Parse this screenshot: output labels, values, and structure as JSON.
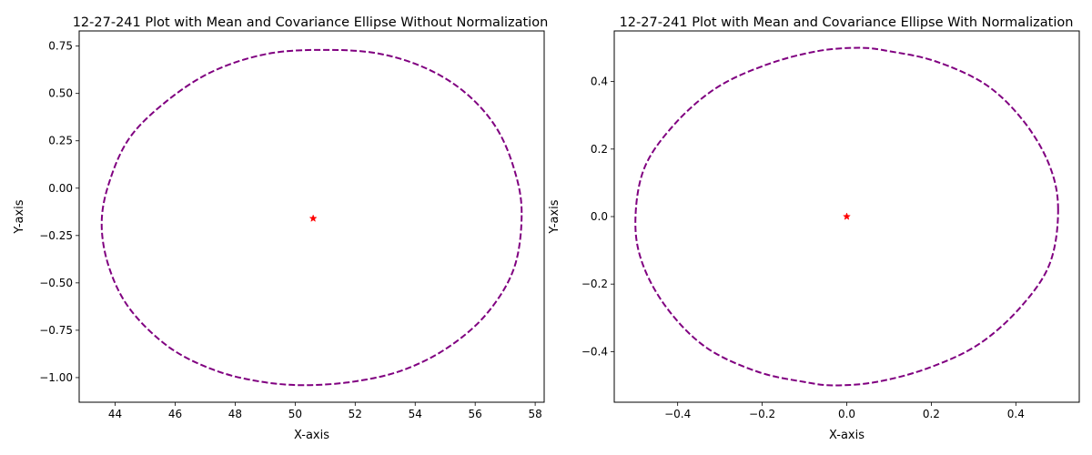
{
  "chart_data": [
    {
      "type": "scatter",
      "title": "12-27-241 Plot with Mean and Covariance Ellipse Without Normalization",
      "xlabel": "X-axis",
      "ylabel": "Y-axis",
      "xlim": [
        42.8,
        58.3
      ],
      "ylim": [
        -1.13,
        0.83
      ],
      "xticks": [
        44,
        46,
        48,
        50,
        52,
        54,
        56,
        58
      ],
      "xtick_labels": [
        "44",
        "46",
        "48",
        "50",
        "52",
        "54",
        "56",
        "58"
      ],
      "yticks": [
        -1.0,
        -0.75,
        -0.5,
        -0.25,
        0.0,
        0.25,
        0.5,
        0.75
      ],
      "ytick_labels": [
        "−1.00",
        "−0.75",
        "−0.50",
        "−0.25",
        "0.00",
        "0.25",
        "0.50",
        "0.75"
      ],
      "grid": false,
      "mean": {
        "x": 50.6,
        "y": -0.16,
        "color": "#ff0000",
        "marker": "star"
      },
      "ellipse": {
        "color": "#800080",
        "linestyle": "dashed",
        "points": [
          [
            57.55,
            -0.13
          ],
          [
            57.3,
            0.1
          ],
          [
            56.7,
            0.32
          ],
          [
            55.7,
            0.5
          ],
          [
            54.4,
            0.63
          ],
          [
            52.8,
            0.71
          ],
          [
            51.0,
            0.73
          ],
          [
            49.1,
            0.71
          ],
          [
            47.3,
            0.62
          ],
          [
            45.8,
            0.47
          ],
          [
            44.5,
            0.27
          ],
          [
            43.8,
            0.03
          ],
          [
            43.55,
            -0.19
          ],
          [
            43.8,
            -0.42
          ],
          [
            44.5,
            -0.64
          ],
          [
            45.8,
            -0.84
          ],
          [
            47.3,
            -0.96
          ],
          [
            48.8,
            -1.02
          ],
          [
            50.3,
            -1.04
          ],
          [
            52.0,
            -1.02
          ],
          [
            53.6,
            -0.96
          ],
          [
            55.1,
            -0.84
          ],
          [
            56.4,
            -0.66
          ],
          [
            57.3,
            -0.42
          ]
        ]
      }
    },
    {
      "type": "scatter",
      "title": "12-27-241 Plot with Mean and Covariance Ellipse With Normalization",
      "xlabel": "X-axis",
      "ylabel": "Y-axis",
      "xlim": [
        -0.55,
        0.55
      ],
      "ylim": [
        -0.55,
        0.55
      ],
      "xticks": [
        -0.4,
        -0.2,
        0.0,
        0.2,
        0.4
      ],
      "xtick_labels": [
        "−0.4",
        "−0.2",
        "0.0",
        "0.2",
        "0.4"
      ],
      "yticks": [
        -0.4,
        -0.2,
        0.0,
        0.2,
        0.4
      ],
      "ytick_labels": [
        "−0.4",
        "−0.2",
        "0.0",
        "0.2",
        "0.4"
      ],
      "grid": false,
      "mean": {
        "x": 0.0,
        "y": 0.0,
        "color": "#ff0000",
        "marker": "star"
      },
      "ellipse": {
        "color": "#800080",
        "linestyle": "dashed",
        "points": [
          [
            0.5,
            0.02
          ],
          [
            0.48,
            0.15
          ],
          [
            0.42,
            0.28
          ],
          [
            0.33,
            0.39
          ],
          [
            0.21,
            0.46
          ],
          [
            0.1,
            0.49
          ],
          [
            0.03,
            0.5
          ],
          [
            -0.07,
            0.49
          ],
          [
            -0.19,
            0.45
          ],
          [
            -0.31,
            0.38
          ],
          [
            -0.41,
            0.27
          ],
          [
            -0.48,
            0.14
          ],
          [
            -0.5,
            -0.02
          ],
          [
            -0.48,
            -0.15
          ],
          [
            -0.42,
            -0.28
          ],
          [
            -0.33,
            -0.39
          ],
          [
            -0.21,
            -0.46
          ],
          [
            -0.1,
            -0.49
          ],
          [
            -0.03,
            -0.5
          ],
          [
            0.07,
            -0.49
          ],
          [
            0.19,
            -0.45
          ],
          [
            0.31,
            -0.38
          ],
          [
            0.41,
            -0.27
          ],
          [
            0.48,
            -0.14
          ]
        ]
      }
    }
  ]
}
